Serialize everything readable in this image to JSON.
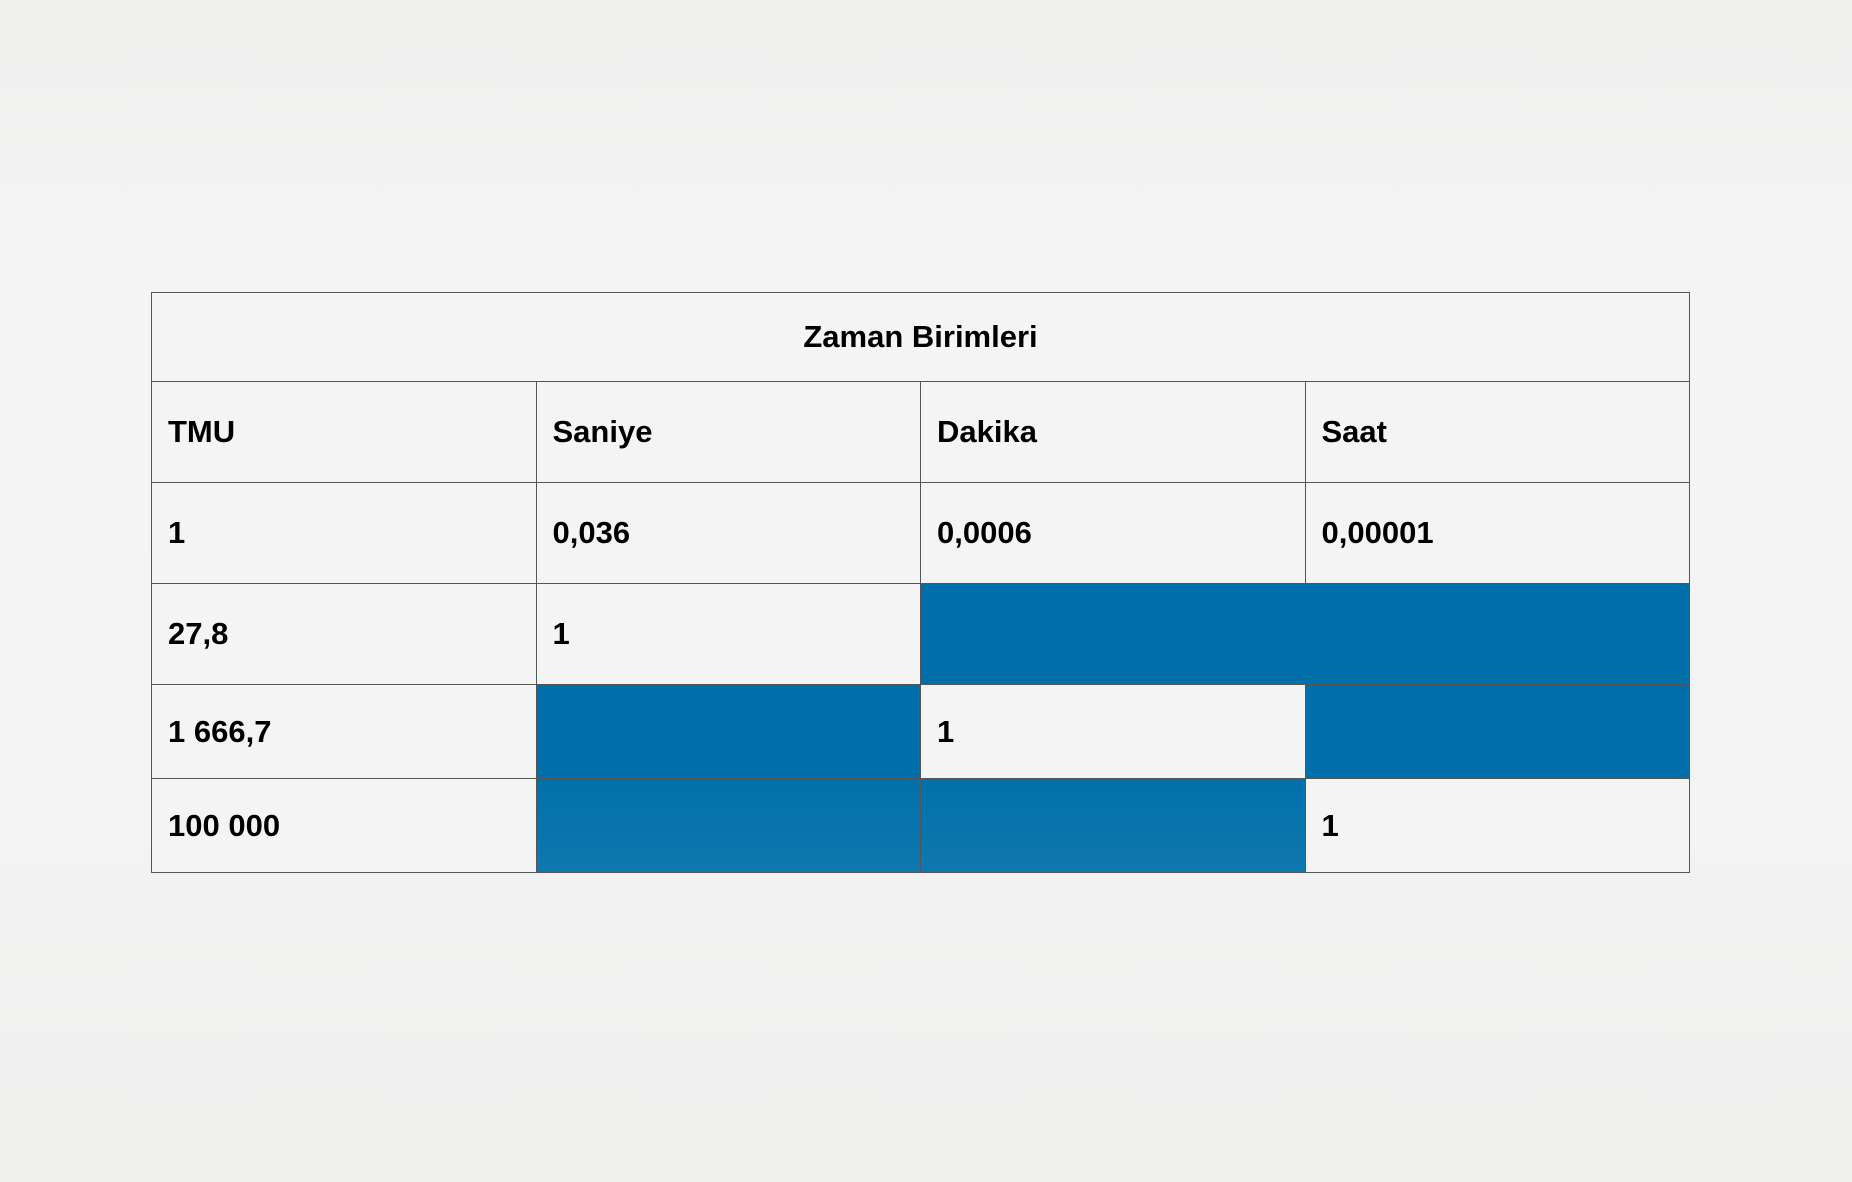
{
  "table": {
    "title": "Zaman Birimleri",
    "headers": [
      "TMU",
      "Saniye",
      "Dakika",
      "Saat"
    ],
    "rows": [
      [
        "1",
        "0,036",
        "0,0006",
        "0,00001"
      ],
      [
        "27,8",
        "1",
        "",
        ""
      ],
      [
        "1 666,7",
        "",
        "1",
        ""
      ],
      [
        "100 000",
        "",
        "",
        "1"
      ]
    ],
    "fill_color": "#0170aa"
  }
}
